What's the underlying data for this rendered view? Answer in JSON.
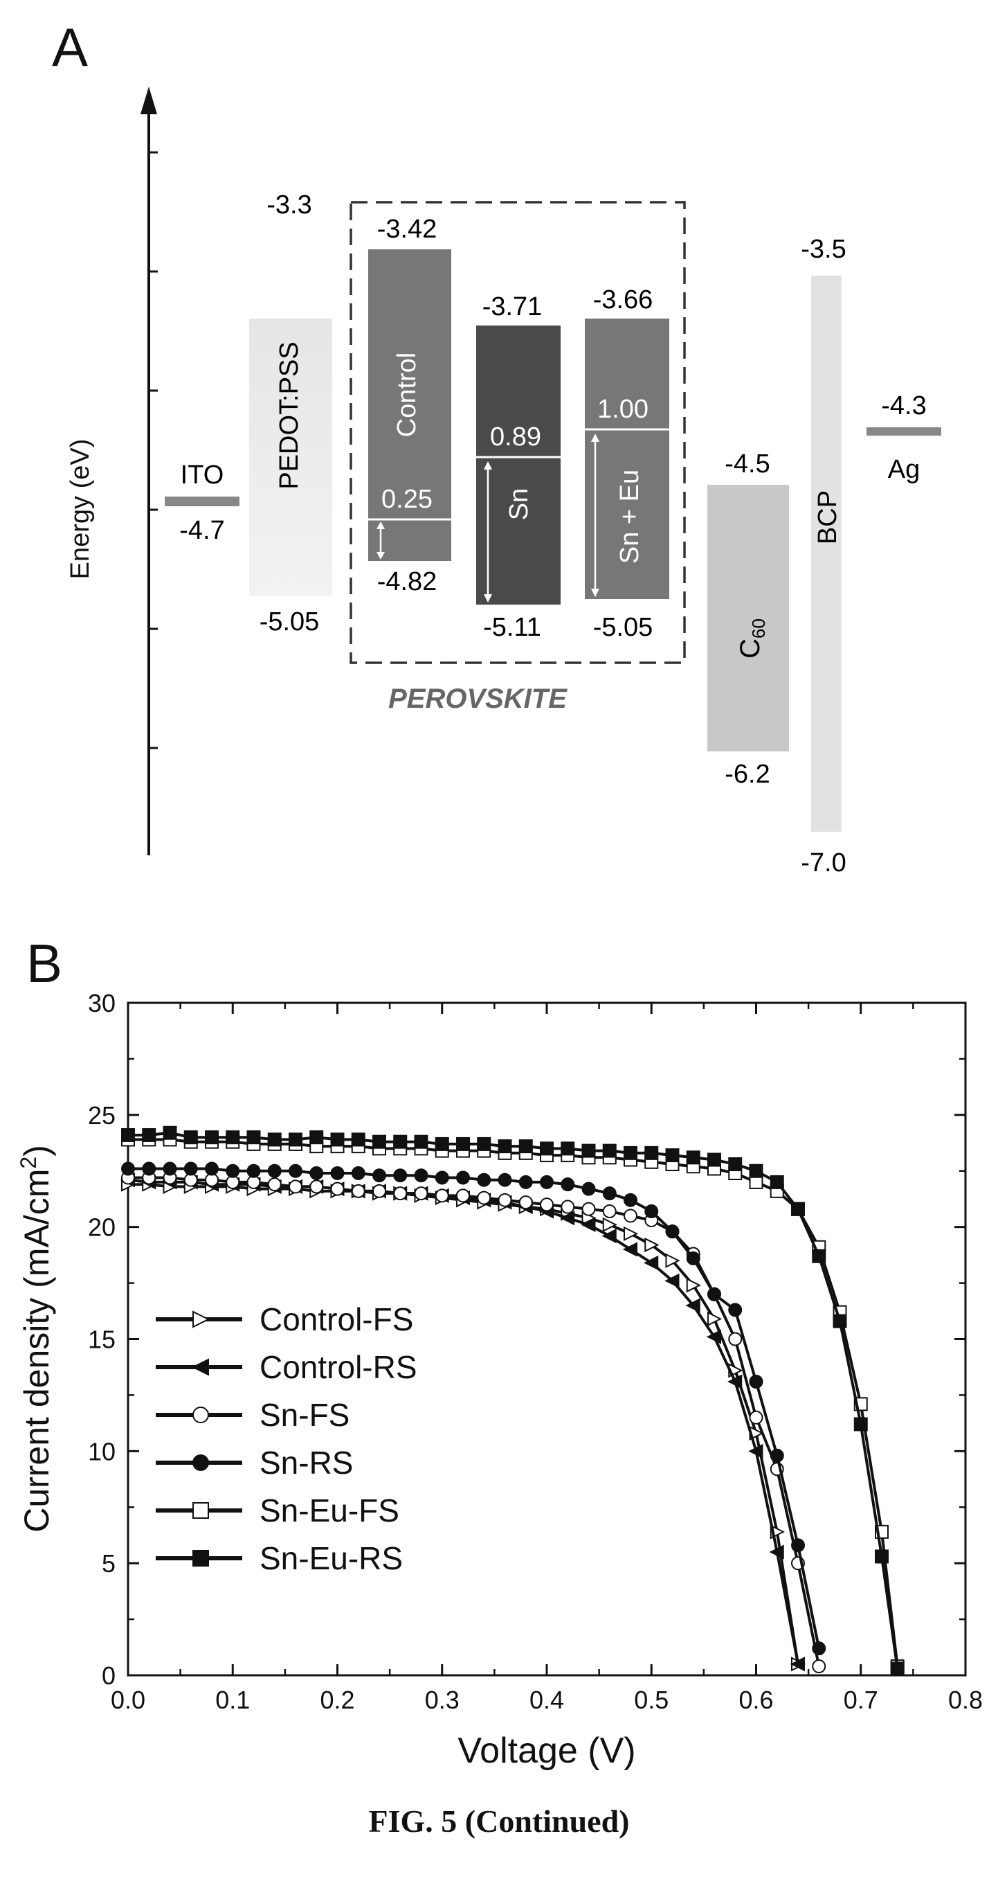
{
  "caption": "FIG. 5 (Continued)",
  "panel_a": {
    "label": "A",
    "ylabel": "Energy (eV)",
    "perovskite_label": "PEROVSKITE",
    "levels": [
      {
        "name": "ITO",
        "label": "ITO",
        "value": -4.7,
        "value_text": "-4.7"
      },
      {
        "name": "PEDOT:PSS",
        "label": "PEDOT:PSS",
        "top": -3.3,
        "top_text": "-3.3",
        "bottom": -5.05,
        "bottom_text": "-5.05"
      },
      {
        "name": "Control",
        "label": "Control",
        "top": -3.42,
        "top_text": "-3.42",
        "bottom": -4.82,
        "bottom_text": "-4.82",
        "trap": -4.57,
        "trap_text": "0.25",
        "color": "#777777"
      },
      {
        "name": "Sn",
        "label": "Sn",
        "top": -3.71,
        "top_text": "-3.71",
        "bottom": -5.11,
        "bottom_text": "-5.11",
        "trap": -4.22,
        "trap_text": "0.89",
        "color": "#4a4a4a"
      },
      {
        "name": "Sn + Eu",
        "label": "Sn + Eu",
        "top": -3.66,
        "top_text": "-3.66",
        "bottom": -5.05,
        "bottom_text": "-5.05",
        "trap": -4.05,
        "trap_text": "1.00",
        "color": "#777777"
      },
      {
        "name": "C60",
        "label": "C",
        "sub": "60",
        "top": -4.5,
        "top_text": "-4.5",
        "bottom": -6.2,
        "bottom_text": "-6.2"
      },
      {
        "name": "BCP",
        "label": "BCP",
        "top": -3.5,
        "top_text": "-3.5",
        "bottom": -7.0,
        "bottom_text": "-7.0"
      },
      {
        "name": "Ag",
        "label": "Ag",
        "value": -4.3,
        "value_text": "-4.3"
      }
    ]
  },
  "panel_b": {
    "label": "B"
  },
  "chart_data": {
    "type": "line",
    "xlabel": "Voltage (V)",
    "ylabel": "Current density (mA/cm2)",
    "xlim": [
      0,
      0.8
    ],
    "ylim": [
      0,
      30
    ],
    "xticks": [
      "0.0",
      "0.1",
      "0.2",
      "0.3",
      "0.4",
      "0.5",
      "0.6",
      "0.7",
      "0.8"
    ],
    "yticks": [
      "0",
      "5",
      "10",
      "15",
      "20",
      "25",
      "30"
    ],
    "legend_position": "lower-left",
    "series": [
      {
        "name": "Control-FS",
        "marker": "triangle-right-open",
        "points": [
          [
            0.0,
            21.9
          ],
          [
            0.02,
            21.9
          ],
          [
            0.04,
            21.8
          ],
          [
            0.06,
            21.8
          ],
          [
            0.08,
            21.8
          ],
          [
            0.1,
            21.8
          ],
          [
            0.12,
            21.7
          ],
          [
            0.14,
            21.7
          ],
          [
            0.16,
            21.7
          ],
          [
            0.18,
            21.6
          ],
          [
            0.2,
            21.6
          ],
          [
            0.22,
            21.6
          ],
          [
            0.24,
            21.5
          ],
          [
            0.26,
            21.5
          ],
          [
            0.28,
            21.4
          ],
          [
            0.3,
            21.3
          ],
          [
            0.32,
            21.2
          ],
          [
            0.34,
            21.1
          ],
          [
            0.36,
            21.0
          ],
          [
            0.38,
            20.9
          ],
          [
            0.4,
            20.8
          ],
          [
            0.42,
            20.6
          ],
          [
            0.44,
            20.4
          ],
          [
            0.46,
            20.1
          ],
          [
            0.48,
            19.7
          ],
          [
            0.5,
            19.2
          ],
          [
            0.52,
            18.5
          ],
          [
            0.54,
            17.4
          ],
          [
            0.56,
            15.9
          ],
          [
            0.58,
            13.6
          ],
          [
            0.6,
            10.8
          ],
          [
            0.62,
            6.4
          ],
          [
            0.64,
            0.5
          ]
        ]
      },
      {
        "name": "Control-RS",
        "marker": "triangle-left-filled",
        "points": [
          [
            0.0,
            22.1
          ],
          [
            0.02,
            22.0
          ],
          [
            0.04,
            22.0
          ],
          [
            0.06,
            22.0
          ],
          [
            0.08,
            21.9
          ],
          [
            0.1,
            21.9
          ],
          [
            0.12,
            21.9
          ],
          [
            0.14,
            21.8
          ],
          [
            0.16,
            21.8
          ],
          [
            0.18,
            21.8
          ],
          [
            0.2,
            21.7
          ],
          [
            0.22,
            21.6
          ],
          [
            0.24,
            21.6
          ],
          [
            0.26,
            21.5
          ],
          [
            0.28,
            21.5
          ],
          [
            0.3,
            21.4
          ],
          [
            0.32,
            21.3
          ],
          [
            0.34,
            21.2
          ],
          [
            0.36,
            21.1
          ],
          [
            0.38,
            20.9
          ],
          [
            0.4,
            20.7
          ],
          [
            0.42,
            20.4
          ],
          [
            0.44,
            20.1
          ],
          [
            0.46,
            19.6
          ],
          [
            0.48,
            19.0
          ],
          [
            0.5,
            18.4
          ],
          [
            0.52,
            17.6
          ],
          [
            0.54,
            16.5
          ],
          [
            0.56,
            15.1
          ],
          [
            0.58,
            13.1
          ],
          [
            0.6,
            10.0
          ],
          [
            0.62,
            5.5
          ],
          [
            0.64,
            0.5
          ]
        ]
      },
      {
        "name": "Sn-FS",
        "marker": "circle-open",
        "points": [
          [
            0.0,
            22.2
          ],
          [
            0.02,
            22.2
          ],
          [
            0.04,
            22.2
          ],
          [
            0.06,
            22.1
          ],
          [
            0.08,
            22.1
          ],
          [
            0.1,
            22.0
          ],
          [
            0.12,
            22.0
          ],
          [
            0.14,
            21.9
          ],
          [
            0.16,
            21.8
          ],
          [
            0.18,
            21.8
          ],
          [
            0.2,
            21.7
          ],
          [
            0.22,
            21.6
          ],
          [
            0.24,
            21.6
          ],
          [
            0.26,
            21.5
          ],
          [
            0.28,
            21.5
          ],
          [
            0.3,
            21.4
          ],
          [
            0.32,
            21.4
          ],
          [
            0.34,
            21.3
          ],
          [
            0.36,
            21.2
          ],
          [
            0.38,
            21.1
          ],
          [
            0.4,
            21.0
          ],
          [
            0.42,
            20.9
          ],
          [
            0.44,
            20.8
          ],
          [
            0.46,
            20.7
          ],
          [
            0.48,
            20.5
          ],
          [
            0.5,
            20.3
          ],
          [
            0.52,
            19.8
          ],
          [
            0.54,
            18.8
          ],
          [
            0.56,
            17.0
          ],
          [
            0.58,
            15.0
          ],
          [
            0.6,
            11.5
          ],
          [
            0.62,
            9.2
          ],
          [
            0.64,
            5.0
          ],
          [
            0.66,
            0.4
          ]
        ]
      },
      {
        "name": "Sn-RS",
        "marker": "circle-filled",
        "points": [
          [
            0.0,
            22.6
          ],
          [
            0.02,
            22.6
          ],
          [
            0.04,
            22.6
          ],
          [
            0.06,
            22.6
          ],
          [
            0.08,
            22.6
          ],
          [
            0.1,
            22.5
          ],
          [
            0.12,
            22.5
          ],
          [
            0.14,
            22.5
          ],
          [
            0.16,
            22.5
          ],
          [
            0.18,
            22.4
          ],
          [
            0.2,
            22.4
          ],
          [
            0.22,
            22.4
          ],
          [
            0.24,
            22.3
          ],
          [
            0.26,
            22.3
          ],
          [
            0.28,
            22.3
          ],
          [
            0.3,
            22.2
          ],
          [
            0.32,
            22.2
          ],
          [
            0.34,
            22.1
          ],
          [
            0.36,
            22.1
          ],
          [
            0.38,
            22.0
          ],
          [
            0.4,
            22.0
          ],
          [
            0.42,
            21.9
          ],
          [
            0.44,
            21.7
          ],
          [
            0.46,
            21.5
          ],
          [
            0.48,
            21.2
          ],
          [
            0.5,
            20.7
          ],
          [
            0.52,
            19.8
          ],
          [
            0.54,
            18.6
          ],
          [
            0.56,
            17.0
          ],
          [
            0.58,
            16.3
          ],
          [
            0.6,
            13.1
          ],
          [
            0.62,
            9.8
          ],
          [
            0.64,
            5.8
          ],
          [
            0.66,
            1.2
          ]
        ]
      },
      {
        "name": "Sn-Eu-FS",
        "marker": "square-open",
        "points": [
          [
            0.0,
            23.9
          ],
          [
            0.02,
            23.9
          ],
          [
            0.04,
            23.9
          ],
          [
            0.06,
            23.8
          ],
          [
            0.08,
            23.8
          ],
          [
            0.1,
            23.8
          ],
          [
            0.12,
            23.7
          ],
          [
            0.14,
            23.7
          ],
          [
            0.16,
            23.7
          ],
          [
            0.18,
            23.6
          ],
          [
            0.2,
            23.6
          ],
          [
            0.22,
            23.6
          ],
          [
            0.24,
            23.5
          ],
          [
            0.26,
            23.5
          ],
          [
            0.28,
            23.5
          ],
          [
            0.3,
            23.4
          ],
          [
            0.32,
            23.4
          ],
          [
            0.34,
            23.4
          ],
          [
            0.36,
            23.3
          ],
          [
            0.38,
            23.3
          ],
          [
            0.4,
            23.2
          ],
          [
            0.42,
            23.2
          ],
          [
            0.44,
            23.1
          ],
          [
            0.46,
            23.1
          ],
          [
            0.48,
            23.0
          ],
          [
            0.5,
            22.9
          ],
          [
            0.52,
            22.8
          ],
          [
            0.54,
            22.7
          ],
          [
            0.56,
            22.6
          ],
          [
            0.58,
            22.4
          ],
          [
            0.6,
            22.0
          ],
          [
            0.62,
            21.6
          ],
          [
            0.64,
            20.8
          ],
          [
            0.66,
            19.1
          ],
          [
            0.68,
            16.2
          ],
          [
            0.7,
            12.1
          ],
          [
            0.72,
            6.4
          ],
          [
            0.735,
            0.4
          ]
        ]
      },
      {
        "name": "Sn-Eu-RS",
        "marker": "square-filled",
        "points": [
          [
            0.0,
            24.1
          ],
          [
            0.02,
            24.1
          ],
          [
            0.04,
            24.2
          ],
          [
            0.06,
            24.0
          ],
          [
            0.08,
            24.0
          ],
          [
            0.1,
            24.0
          ],
          [
            0.12,
            24.0
          ],
          [
            0.14,
            23.9
          ],
          [
            0.16,
            23.9
          ],
          [
            0.18,
            24.0
          ],
          [
            0.2,
            23.9
          ],
          [
            0.22,
            23.9
          ],
          [
            0.24,
            23.8
          ],
          [
            0.26,
            23.8
          ],
          [
            0.28,
            23.8
          ],
          [
            0.3,
            23.7
          ],
          [
            0.32,
            23.7
          ],
          [
            0.34,
            23.7
          ],
          [
            0.36,
            23.6
          ],
          [
            0.38,
            23.6
          ],
          [
            0.4,
            23.5
          ],
          [
            0.42,
            23.5
          ],
          [
            0.44,
            23.4
          ],
          [
            0.46,
            23.4
          ],
          [
            0.48,
            23.3
          ],
          [
            0.5,
            23.3
          ],
          [
            0.52,
            23.2
          ],
          [
            0.54,
            23.1
          ],
          [
            0.56,
            23.0
          ],
          [
            0.58,
            22.8
          ],
          [
            0.6,
            22.5
          ],
          [
            0.62,
            22.0
          ],
          [
            0.64,
            20.8
          ],
          [
            0.66,
            18.7
          ],
          [
            0.68,
            15.8
          ],
          [
            0.7,
            11.2
          ],
          [
            0.72,
            5.3
          ],
          [
            0.735,
            0.3
          ]
        ]
      }
    ]
  }
}
